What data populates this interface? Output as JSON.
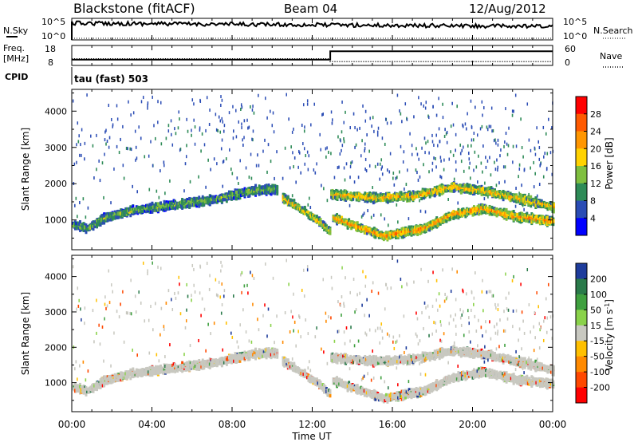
{
  "header": {
    "radar": "Blackstone (fitACF)",
    "beam": "Beam 04",
    "date": "12/Aug/2012"
  },
  "nsky_panel": {
    "left_label": "N.Sky",
    "right_label": "N.Search",
    "left_ticks": [
      "10^5",
      "10^0"
    ],
    "right_ticks": [
      "10^5",
      "10^0"
    ]
  },
  "freq_panel": {
    "left_label_line1": "Freq.",
    "left_label_line2": "[MHz]",
    "right_label": "Nave",
    "left_ticks": [
      "18",
      "8"
    ],
    "right_ticks": [
      "60",
      "0"
    ],
    "cpid_label": "CPID",
    "cpid_text": "tau (fast) 503"
  },
  "power_panel": {
    "ylabel": "Slant Range [km]",
    "colorbar_label": "Power [dB]",
    "colorbar_ticks": [
      "28",
      "24",
      "20",
      "16",
      "12",
      "8",
      "4"
    ],
    "colorbar_colors": [
      "#ff0000",
      "#ff5a00",
      "#ff9600",
      "#ffd200",
      "#7fbf3f",
      "#2e8b57",
      "#2a4cb5",
      "#0000ff"
    ]
  },
  "velocity_panel": {
    "ylabel": "Slant Range [km]",
    "colorbar_label": "Velocity [m s",
    "colorbar_label_sup": "-1",
    "colorbar_label_end": "]",
    "colorbar_ticks": [
      "200",
      "100",
      "50",
      "15",
      "-15",
      "-50",
      "-100",
      "-200"
    ],
    "colorbar_colors": [
      "#1e3c9c",
      "#2a7a4a",
      "#3fa03f",
      "#8ad24a",
      "#c8c8c0",
      "#ffc000",
      "#ff8a00",
      "#ff4800",
      "#ff0000"
    ]
  },
  "xaxis": {
    "label": "Time UT",
    "tick_labels": [
      "00:00",
      "04:00",
      "08:00",
      "12:00",
      "16:00",
      "20:00",
      "00:00"
    ]
  },
  "colors": {
    "background": "#ffffff",
    "ground_scatter": "#c8c8c0",
    "axis": "#000000"
  },
  "chart_data": [
    {
      "type": "line",
      "title": "",
      "series_left": "N.Sky",
      "series_right": "N.Search",
      "x_range": [
        0,
        24
      ],
      "x_tick_values": [
        0,
        4,
        8,
        12,
        16,
        20,
        24
      ]
    },
    {
      "type": "line",
      "series_left": "Freq.",
      "series_right": "Nave",
      "freq_mhz": {
        "x": [
          0,
          12.9,
          12.9,
          24
        ],
        "y": [
          10.5,
          10.5,
          15.5,
          15.5
        ]
      },
      "nave": {
        "x": [
          0,
          12.9,
          12.9,
          24
        ],
        "y": [
          18,
          18,
          8,
          8
        ]
      },
      "freq_ylim": [
        8,
        18
      ],
      "nave_ylim": [
        0,
        60
      ]
    },
    {
      "type": "heatmap",
      "ylabel": "Slant Range [km]",
      "xlabel": "Time UT",
      "ylim": [
        180,
        4600
      ],
      "y_tick_values": [
        1000,
        2000,
        3000,
        4000
      ],
      "x_range": [
        0,
        24
      ],
      "colorbar": "Power [dB]",
      "colorbar_range": [
        0,
        32
      ],
      "colorbar_tick_values": [
        4,
        8,
        12,
        16,
        20,
        24,
        28
      ],
      "echo_bands": [
        {
          "t": [
            0,
            0.8,
            1.6,
            3,
            5,
            7,
            9,
            10.2
          ],
          "range": [
            900,
            820,
            1100,
            1300,
            1450,
            1600,
            1850,
            1900
          ],
          "power": 14
        },
        {
          "t": [
            10.5,
            11.5,
            12.3,
            12.9
          ],
          "range": [
            1650,
            1300,
            1000,
            700
          ],
          "power": 20
        },
        {
          "t": [
            12.9,
            15,
            17,
            19,
            20.5,
            22.5,
            24
          ],
          "range": [
            1750,
            1650,
            1700,
            1950,
            1850,
            1600,
            1400
          ],
          "power": 22
        },
        {
          "t": [
            13,
            14,
            15.5,
            17.5,
            19,
            20.5,
            22,
            24
          ],
          "range": [
            1100,
            900,
            600,
            800,
            1200,
            1350,
            1150,
            1000
          ],
          "power": 24
        }
      ]
    },
    {
      "type": "heatmap",
      "ylabel": "Slant Range [km]",
      "xlabel": "Time UT",
      "ylim": [
        180,
        4600
      ],
      "y_tick_values": [
        1000,
        2000,
        3000,
        4000
      ],
      "x_range": [
        0,
        24
      ],
      "colorbar": "Velocity [m s-1]",
      "colorbar_tick_values": [
        200,
        100,
        50,
        15,
        -15,
        -50,
        -100,
        -200
      ],
      "note_ground_scatter_color": "#c8c8c0"
    }
  ]
}
